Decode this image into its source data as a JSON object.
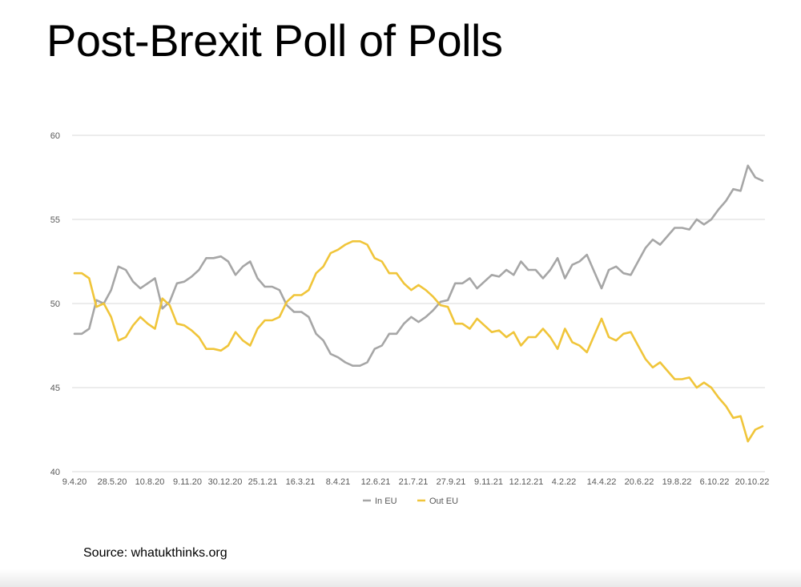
{
  "title": "Post-Brexit Poll of Polls",
  "source": "Source: whatukthinks.org",
  "chart_data": {
    "type": "line",
    "title": "",
    "xlabel": "",
    "ylabel": "",
    "ylim": [
      40,
      60
    ],
    "yticks": [
      40,
      45,
      50,
      55,
      60
    ],
    "grid": true,
    "legend": "bottom-center",
    "x_tick_labels": [
      "9.4.20",
      "28.5.20",
      "10.8.20",
      "9.11.20",
      "30.12.20",
      "25.1.21",
      "16.3.21",
      "8.4.21",
      "12.6.21",
      "21.7.21",
      "27.9.21",
      "9.11.21",
      "12.12.21",
      "4.2.22",
      "14.4.22",
      "20.6.22",
      "19.8.22",
      "6.10.22",
      "20.10.22"
    ],
    "series": [
      {
        "name": "In EU",
        "color": "#a6a6a6",
        "values": [
          48.2,
          48.2,
          48.5,
          50.2,
          50.0,
          50.8,
          52.2,
          52.0,
          51.3,
          50.9,
          51.2,
          51.5,
          49.7,
          50.1,
          51.2,
          51.3,
          51.6,
          52.0,
          52.7,
          52.7,
          52.8,
          52.5,
          51.7,
          52.2,
          52.5,
          51.5,
          51.0,
          51.0,
          50.8,
          49.9,
          49.5,
          49.5,
          49.2,
          48.2,
          47.8,
          47.0,
          46.8,
          46.5,
          46.3,
          46.3,
          46.5,
          47.3,
          47.5,
          48.2,
          48.2,
          48.8,
          49.2,
          48.9,
          49.2,
          49.6,
          50.1,
          50.2,
          51.2,
          51.2,
          51.5,
          50.9,
          51.3,
          51.7,
          51.6,
          52.0,
          51.7,
          52.5,
          52.0,
          52.0,
          51.5,
          52.0,
          52.7,
          51.5,
          52.3,
          52.5,
          52.9,
          51.9,
          50.9,
          52.0,
          52.2,
          51.8,
          51.7,
          52.5,
          53.3,
          53.8,
          53.5,
          54.0,
          54.5,
          54.5,
          54.4,
          55.0,
          54.7,
          55.0,
          55.6,
          56.1,
          56.8,
          56.7,
          58.2,
          57.5,
          57.3
        ]
      },
      {
        "name": "Out EU",
        "color": "#f0c53a",
        "values": [
          51.8,
          51.8,
          51.5,
          49.8,
          50.0,
          49.2,
          47.8,
          48.0,
          48.7,
          49.2,
          48.8,
          48.5,
          50.3,
          49.9,
          48.8,
          48.7,
          48.4,
          48.0,
          47.3,
          47.3,
          47.2,
          47.5,
          48.3,
          47.8,
          47.5,
          48.5,
          49.0,
          49.0,
          49.2,
          50.1,
          50.5,
          50.5,
          50.8,
          51.8,
          52.2,
          53.0,
          53.2,
          53.5,
          53.7,
          53.7,
          53.5,
          52.7,
          52.5,
          51.8,
          51.8,
          51.2,
          50.8,
          51.1,
          50.8,
          50.4,
          49.9,
          49.8,
          48.8,
          48.8,
          48.5,
          49.1,
          48.7,
          48.3,
          48.4,
          48.0,
          48.3,
          47.5,
          48.0,
          48.0,
          48.5,
          48.0,
          47.3,
          48.5,
          47.7,
          47.5,
          47.1,
          48.1,
          49.1,
          48.0,
          47.8,
          48.2,
          48.3,
          47.5,
          46.7,
          46.2,
          46.5,
          46.0,
          45.5,
          45.5,
          45.6,
          45.0,
          45.3,
          45.0,
          44.4,
          43.9,
          43.2,
          43.3,
          41.8,
          42.5,
          42.7
        ]
      }
    ]
  }
}
